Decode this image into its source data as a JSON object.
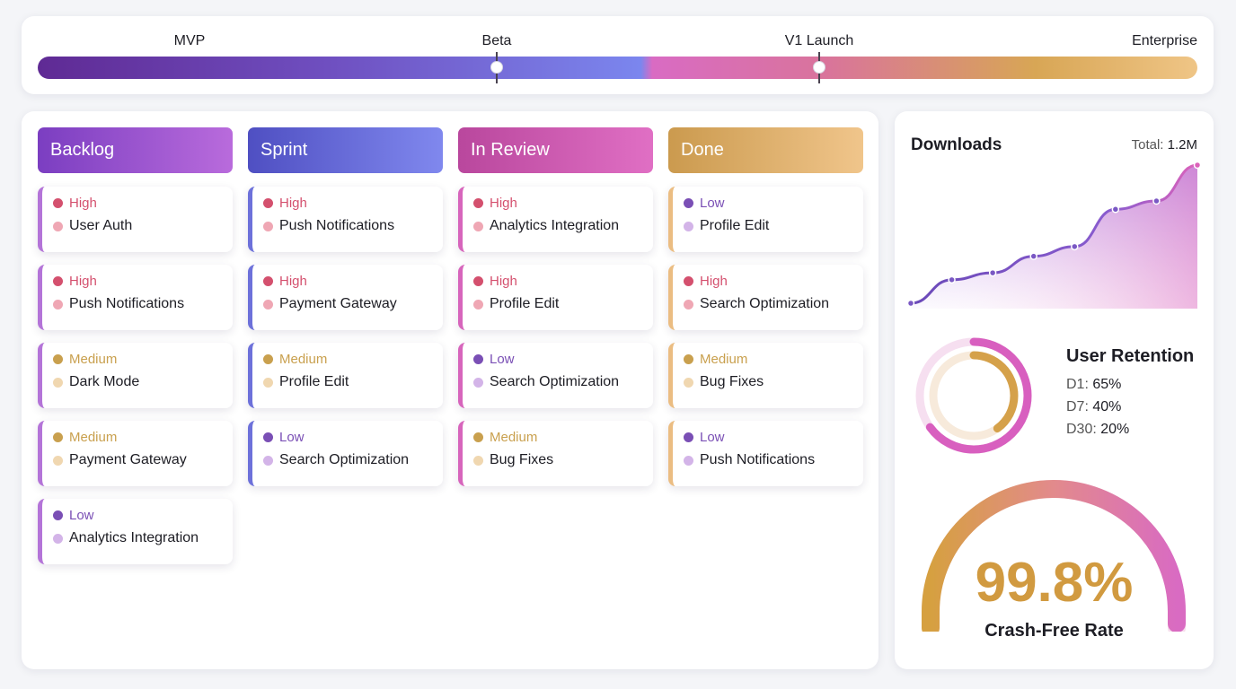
{
  "timeline": {
    "milestones": [
      {
        "label": "MVP"
      },
      {
        "label": "Beta"
      },
      {
        "label": "V1 Launch"
      },
      {
        "label": "Enterprise"
      }
    ]
  },
  "board": {
    "columns": [
      {
        "title": "Backlog",
        "cards": [
          {
            "priority": "High",
            "title": "User Auth"
          },
          {
            "priority": "High",
            "title": "Push Notifications"
          },
          {
            "priority": "Medium",
            "title": "Dark Mode"
          },
          {
            "priority": "Medium",
            "title": "Payment Gateway"
          },
          {
            "priority": "Low",
            "title": "Analytics Integration"
          }
        ]
      },
      {
        "title": "Sprint",
        "cards": [
          {
            "priority": "High",
            "title": "Push Notifications"
          },
          {
            "priority": "High",
            "title": "Payment Gateway"
          },
          {
            "priority": "Medium",
            "title": "Profile Edit"
          },
          {
            "priority": "Low",
            "title": "Search Optimization"
          }
        ]
      },
      {
        "title": "In Review",
        "cards": [
          {
            "priority": "High",
            "title": "Analytics Integration"
          },
          {
            "priority": "High",
            "title": "Profile Edit"
          },
          {
            "priority": "Low",
            "title": "Search Optimization"
          },
          {
            "priority": "Medium",
            "title": "Bug Fixes"
          }
        ]
      },
      {
        "title": "Done",
        "cards": [
          {
            "priority": "Low",
            "title": "Profile Edit"
          },
          {
            "priority": "High",
            "title": "Search Optimization"
          },
          {
            "priority": "Medium",
            "title": "Bug Fixes"
          },
          {
            "priority": "Low",
            "title": "Push Notifications"
          }
        ]
      }
    ]
  },
  "colors": {
    "high": "#d4506e",
    "medium": "#c9a04e",
    "low": "#7a4fb5",
    "backlog": "#b96bdc",
    "sprint": "#6a6ee0",
    "review": "#d462b8",
    "done": "#e6b878"
  },
  "downloads": {
    "title": "Downloads",
    "total_label": "Total:",
    "total_value": "1.2M",
    "points": [
      0.0,
      0.17,
      0.22,
      0.34,
      0.41,
      0.68,
      0.74,
      1.0
    ]
  },
  "retention": {
    "title": "User Retention",
    "rows": [
      {
        "label": "D1:",
        "value": "65%",
        "fraction": 0.65
      },
      {
        "label": "D7:",
        "value": "40%",
        "fraction": 0.4
      },
      {
        "label": "D30:",
        "value": "20%",
        "fraction": 0.2
      }
    ]
  },
  "crash_free": {
    "value": "99.8%",
    "label": "Crash-Free Rate",
    "fraction": 0.998
  }
}
